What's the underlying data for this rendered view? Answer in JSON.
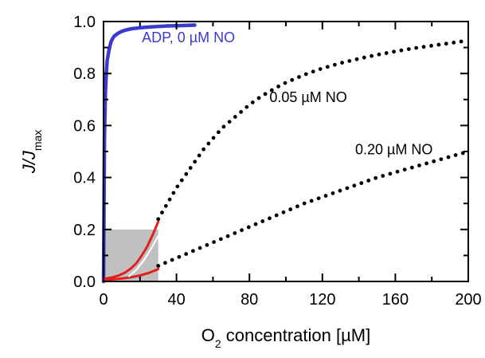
{
  "chart_data": {
    "type": "line",
    "xlabel": {
      "main": "O",
      "sub": "2",
      "rest": " concentration [µM]"
    },
    "ylabel": {
      "main": "J/J",
      "sub": "max"
    },
    "xlim": [
      0,
      200
    ],
    "ylim": [
      0,
      1.0
    ],
    "x_ticks": [
      0,
      40,
      80,
      120,
      160,
      200
    ],
    "x_tick_labels": [
      "0",
      "40",
      "80",
      "120",
      "160",
      "200"
    ],
    "y_ticks": [
      0,
      0.2,
      0.4,
      0.6,
      0.8,
      1.0
    ],
    "y_tick_labels": [
      "0.0",
      "0.2",
      "0.4",
      "0.6",
      "0.8",
      "1.0"
    ],
    "grid": false,
    "legend": "none",
    "highlight_region": {
      "x": [
        0,
        30
      ],
      "y": [
        0,
        0.2
      ],
      "color": "#c0c0c0"
    },
    "series": [
      {
        "name": "ADP, 0 µM NO",
        "style": "solid",
        "color": "#3a3acf",
        "x": [
          0,
          0.5,
          1,
          1.5,
          2,
          3,
          4,
          5,
          6,
          8,
          10,
          12,
          15,
          20,
          25,
          30,
          35,
          40,
          45,
          50
        ],
        "y": [
          0,
          0.55,
          0.72,
          0.8,
          0.85,
          0.89,
          0.92,
          0.935,
          0.945,
          0.955,
          0.962,
          0.967,
          0.972,
          0.976,
          0.979,
          0.981,
          0.983,
          0.984,
          0.985,
          0.986
        ]
      },
      {
        "name": "0.05 µM NO",
        "style": "dotted",
        "color": "#000000",
        "x": [
          30,
          35,
          40,
          45,
          50,
          55,
          60,
          65,
          70,
          75,
          80,
          85,
          90,
          95,
          100,
          110,
          120,
          130,
          140,
          150,
          160,
          170,
          180,
          190,
          200
        ],
        "y": [
          0.24,
          0.3,
          0.36,
          0.41,
          0.46,
          0.51,
          0.55,
          0.59,
          0.62,
          0.65,
          0.68,
          0.705,
          0.727,
          0.747,
          0.765,
          0.795,
          0.82,
          0.84,
          0.857,
          0.872,
          0.885,
          0.897,
          0.907,
          0.917,
          0.927
        ]
      },
      {
        "name": "0.20 µM NO",
        "style": "dotted",
        "color": "#000000",
        "x": [
          30,
          40,
          50,
          60,
          70,
          80,
          90,
          100,
          110,
          120,
          130,
          140,
          150,
          160,
          170,
          180,
          190,
          200
        ],
        "y": [
          0.06,
          0.09,
          0.12,
          0.15,
          0.18,
          0.21,
          0.24,
          0.27,
          0.3,
          0.325,
          0.35,
          0.375,
          0.4,
          0.42,
          0.44,
          0.46,
          0.48,
          0.5
        ]
      },
      {
        "name": "",
        "style": "solid",
        "color": "#e02020",
        "x": [
          0,
          2,
          5,
          8,
          12,
          15,
          18,
          21,
          24,
          27,
          30
        ],
        "y": [
          0.01,
          0.012,
          0.016,
          0.022,
          0.035,
          0.05,
          0.07,
          0.1,
          0.135,
          0.18,
          0.23
        ]
      },
      {
        "name": "",
        "style": "solid",
        "color": "#e02020",
        "x": [
          0,
          5,
          10,
          15,
          20,
          25,
          30
        ],
        "y": [
          0.005,
          0.008,
          0.011,
          0.016,
          0.023,
          0.033,
          0.048
        ]
      },
      {
        "name": "",
        "style": "solid",
        "color": "#ffffff",
        "x": [
          14,
          18,
          22,
          26,
          30
        ],
        "y": [
          0.02,
          0.045,
          0.08,
          0.125,
          0.175
        ]
      }
    ],
    "annotations": [
      {
        "text": "ADP, 0 µM NO",
        "color": "#3a3acf",
        "x": 21,
        "y": 0.92
      },
      {
        "text": "0.05 µM NO",
        "color": "#000000",
        "x": 91,
        "y": 0.69
      },
      {
        "text": "0.20 µM NO",
        "color": "#000000",
        "x": 138,
        "y": 0.49
      }
    ]
  }
}
